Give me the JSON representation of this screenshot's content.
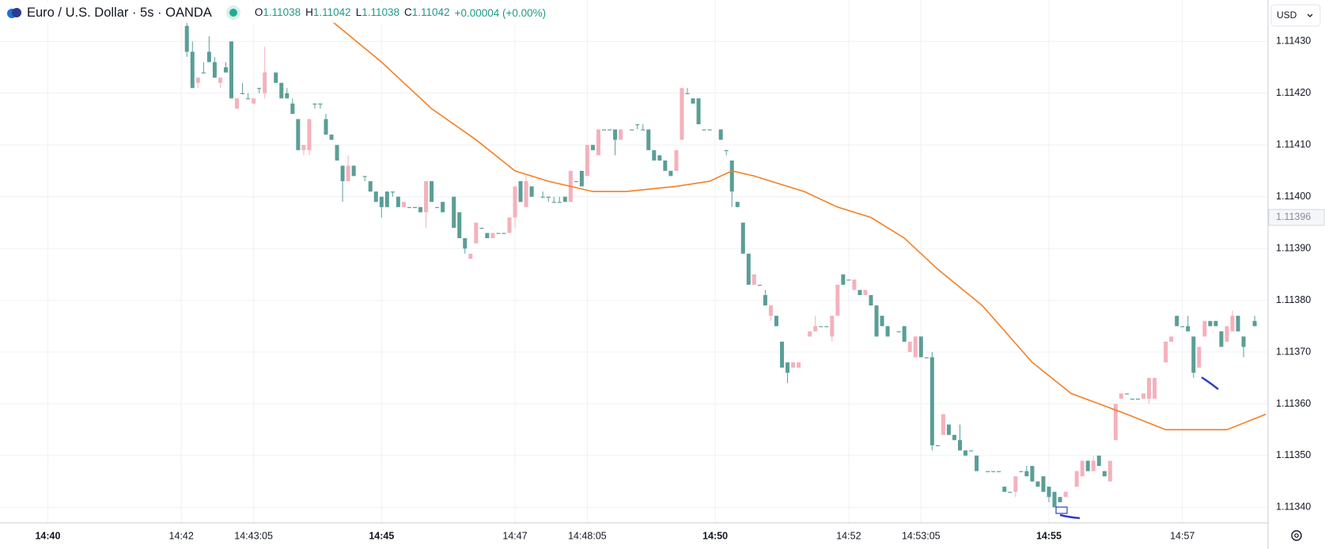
{
  "header": {
    "symbol": "Euro / U.S. Dollar · 5s · OANDA",
    "ohlc": [
      {
        "label": "O",
        "value": "1.11038"
      },
      {
        "label": "H",
        "value": "1.11042"
      },
      {
        "label": "L",
        "value": "1.11038"
      },
      {
        "label": "C",
        "value": "1.11042"
      }
    ],
    "change": "+0.00004 (+0.00%)"
  },
  "currency": "USD",
  "chart_data": {
    "type": "candlestick",
    "grid": true,
    "up_color": "#f4b1bc",
    "down_color": "#5a9e97",
    "xlim": [
      "14:39:17",
      "14:58:17"
    ],
    "xticks": [
      "14:40",
      "14:42",
      "14:43:05",
      "14:45",
      "14:47",
      "14:48:05",
      "14:50",
      "14:52",
      "14:53:05",
      "14:55",
      "14:57"
    ],
    "ylim": [
      1.11337,
      1.11438
    ],
    "yticks": [
      {
        "value": 1.1134,
        "label": "1.11340"
      },
      {
        "value": 1.1135,
        "label": "1.11350"
      },
      {
        "value": 1.1136,
        "label": "1.11360"
      },
      {
        "value": 1.1137,
        "label": "1.11370"
      },
      {
        "value": 1.1138,
        "label": "1.11380"
      },
      {
        "value": 1.1139,
        "label": "1.11390"
      },
      {
        "value": 1.114,
        "label": "1.11400"
      },
      {
        "value": 1.1141,
        "label": "1.11410"
      },
      {
        "value": 1.1142,
        "label": "1.11420"
      },
      {
        "value": 1.1143,
        "label": "1.11430"
      }
    ],
    "last_price": 1.11396,
    "x": [
      "14:42:05",
      "14:42:10",
      "14:42:15",
      "14:42:20",
      "14:42:25",
      "14:42:30",
      "14:42:35",
      "14:42:40",
      "14:42:45",
      "14:42:50",
      "14:42:55",
      "14:43:00",
      "14:43:05",
      "14:43:10",
      "14:43:15",
      "14:43:25",
      "14:43:30",
      "14:43:35",
      "14:43:40",
      "14:43:45",
      "14:43:50",
      "14:43:55",
      "14:44:00",
      "14:44:05",
      "14:44:10",
      "14:44:15",
      "14:44:20",
      "14:44:25",
      "14:44:30",
      "14:44:35",
      "14:44:45",
      "14:44:50",
      "14:44:55",
      "14:45:00",
      "14:45:05",
      "14:45:10",
      "14:45:15",
      "14:45:20",
      "14:45:25",
      "14:45:30",
      "14:45:35",
      "14:45:40",
      "14:45:45",
      "14:45:50",
      "14:45:55",
      "14:46:05",
      "14:46:10",
      "14:46:15",
      "14:46:20",
      "14:46:25",
      "14:46:30",
      "14:46:35",
      "14:46:40",
      "14:46:45",
      "14:46:50",
      "14:46:55",
      "14:47:00",
      "14:47:05",
      "14:47:10",
      "14:47:15",
      "14:47:25",
      "14:47:30",
      "14:47:35",
      "14:47:40",
      "14:47:45",
      "14:47:50",
      "14:47:55",
      "14:48:00",
      "14:48:05",
      "14:48:10",
      "14:48:15",
      "14:48:20",
      "14:48:25",
      "14:48:30",
      "14:48:35",
      "14:48:45",
      "14:48:50",
      "14:48:55",
      "14:49:00",
      "14:49:05",
      "14:49:10",
      "14:49:15",
      "14:49:20",
      "14:49:25",
      "14:49:30",
      "14:49:35",
      "14:49:40",
      "14:49:45",
      "14:49:50",
      "14:49:55",
      "14:50:05",
      "14:50:10",
      "14:50:15",
      "14:50:20",
      "14:50:25",
      "14:50:30",
      "14:50:35",
      "14:50:40",
      "14:50:45",
      "14:50:50",
      "14:50:55",
      "14:51:00",
      "14:51:05",
      "14:51:10",
      "14:51:15",
      "14:51:25",
      "14:51:30",
      "14:51:35",
      "14:51:40",
      "14:51:45",
      "14:51:50",
      "14:51:55",
      "14:52:00",
      "14:52:05",
      "14:52:10",
      "14:52:15",
      "14:52:20",
      "14:52:25",
      "14:52:30",
      "14:52:35",
      "14:52:45",
      "14:52:50",
      "14:52:55",
      "14:53:00",
      "14:53:05",
      "14:53:10",
      "14:53:15",
      "14:53:20",
      "14:53:25",
      "14:53:30",
      "14:53:35",
      "14:53:40",
      "14:53:45",
      "14:53:50",
      "14:53:55",
      "14:54:05",
      "14:54:10",
      "14:54:15",
      "14:54:20",
      "14:54:25",
      "14:54:30",
      "14:54:35",
      "14:54:40",
      "14:54:45",
      "14:54:50",
      "14:54:55",
      "14:55:00",
      "14:55:05",
      "14:55:10",
      "14:55:15",
      "14:55:25",
      "14:55:30",
      "14:55:35",
      "14:55:40",
      "14:55:45",
      "14:55:50",
      "14:55:55",
      "14:56:00",
      "14:56:05",
      "14:56:10",
      "14:56:15",
      "14:56:20",
      "14:56:25",
      "14:56:30",
      "14:56:35",
      "14:56:45",
      "14:56:50",
      "14:56:55",
      "14:57:00",
      "14:57:05",
      "14:57:10",
      "14:57:15",
      "14:57:20",
      "14:57:25",
      "14:57:30",
      "14:57:35",
      "14:57:40",
      "14:57:45",
      "14:57:50",
      "14:57:55",
      "14:58:05"
    ],
    "open": [
      1.11433,
      1.11428,
      1.11422,
      1.11424,
      1.11428,
      1.11426,
      1.11422,
      1.11425,
      1.1143,
      1.11417,
      1.1142,
      1.11419,
      1.11418,
      1.11421,
      1.1142,
      1.11424,
      1.11422,
      1.1142,
      1.11418,
      1.11415,
      1.11409,
      1.11409,
      1.11418,
      1.11418,
      1.11415,
      1.11412,
      1.1141,
      1.11406,
      1.11403,
      1.11406,
      1.11404,
      1.11403,
      1.11401,
      1.114,
      1.11401,
      1.11401,
      1.114,
      1.11398,
      1.11398,
      1.11398,
      1.11398,
      1.11397,
      1.11403,
      1.11398,
      1.11399,
      1.114,
      1.11397,
      1.11392,
      1.11388,
      1.11391,
      1.11394,
      1.11393,
      1.11392,
      1.11393,
      1.11393,
      1.11393,
      1.11396,
      1.11403,
      1.11398,
      1.11402,
      1.114,
      1.114,
      1.11399,
      1.11399,
      1.114,
      1.11399,
      1.11403,
      1.11405,
      1.11404,
      1.1141,
      1.11408,
      1.11413,
      1.11413,
      1.11413,
      1.11411,
      1.11413,
      1.11414,
      1.11413,
      1.11413,
      1.11409,
      1.11408,
      1.11407,
      1.11405,
      1.11405,
      1.11411,
      1.1142,
      1.11419,
      1.11419,
      1.11413,
      1.11413,
      1.11413,
      1.11409,
      1.11407,
      1.11399,
      1.11395,
      1.11389,
      1.11383,
      1.11383,
      1.11381,
      1.11377,
      1.11377,
      1.11372,
      1.11368,
      1.11367,
      1.11367,
      1.11373,
      1.11374,
      1.11375,
      1.11375,
      1.11373,
      1.11377,
      1.11385,
      1.11384,
      1.11382,
      1.11382,
      1.11381,
      1.11381,
      1.11379,
      1.11377,
      1.11375,
      1.11374,
      1.11375,
      1.1137,
      1.11369,
      1.11373,
      1.11369,
      1.11369,
      1.11352,
      1.11354,
      1.11356,
      1.11354,
      1.11353,
      1.11351,
      1.11351,
      1.1135,
      1.11347,
      1.11347,
      1.11347,
      1.11344,
      1.11343,
      1.11343,
      1.11347,
      1.11347,
      1.11348,
      1.11345,
      1.11346,
      1.11344,
      1.11343,
      1.11342,
      1.11342,
      1.11344,
      1.11346,
      1.11349,
      1.11347,
      1.1135,
      1.11347,
      1.11345,
      1.11353,
      1.11361,
      1.11362,
      1.11361,
      1.11361,
      1.11361,
      1.11361,
      1.11361,
      1.11368,
      1.11372,
      1.11377,
      1.11375,
      1.11375,
      1.11373,
      1.11367,
      1.11373,
      1.11376,
      1.11376,
      1.11374,
      1.11372,
      1.11374,
      1.11377,
      1.11373,
      1.11376
    ],
    "high": [
      1.11434,
      1.1143,
      1.11423,
      1.11426,
      1.11431,
      1.11427,
      1.11423,
      1.11426,
      1.1143,
      1.11419,
      1.11422,
      1.1142,
      1.11419,
      1.11421,
      1.11429,
      1.11424,
      1.11422,
      1.11421,
      1.11419,
      1.11415,
      1.1141,
      1.11415,
      1.11418,
      1.11418,
      1.11416,
      1.11412,
      1.1141,
      1.11406,
      1.11408,
      1.11406,
      1.11404,
      1.11403,
      1.11401,
      1.114,
      1.11401,
      1.11401,
      1.114,
      1.11399,
      1.11398,
      1.11398,
      1.11398,
      1.11403,
      1.11403,
      1.11398,
      1.11399,
      1.114,
      1.11397,
      1.11392,
      1.11389,
      1.11395,
      1.11394,
      1.11393,
      1.11393,
      1.11393,
      1.11393,
      1.11396,
      1.11402,
      1.11403,
      1.11404,
      1.11402,
      1.11401,
      1.114,
      1.114,
      1.114,
      1.114,
      1.11405,
      1.11403,
      1.11405,
      1.1141,
      1.1141,
      1.11413,
      1.11413,
      1.11413,
      1.11413,
      1.11413,
      1.11413,
      1.11414,
      1.11414,
      1.11413,
      1.11409,
      1.11408,
      1.11407,
      1.11405,
      1.11409,
      1.11421,
      1.11421,
      1.11419,
      1.11419,
      1.11413,
      1.11413,
      1.11413,
      1.11409,
      1.11407,
      1.11399,
      1.11395,
      1.11389,
      1.11385,
      1.11383,
      1.11382,
      1.11379,
      1.11377,
      1.11372,
      1.11368,
      1.11368,
      1.11368,
      1.11374,
      1.11377,
      1.11375,
      1.11375,
      1.11377,
      1.11383,
      1.11385,
      1.11384,
      1.11384,
      1.11382,
      1.11382,
      1.11381,
      1.11379,
      1.11377,
      1.11375,
      1.11374,
      1.11375,
      1.11372,
      1.11373,
      1.11373,
      1.11369,
      1.1137,
      1.11352,
      1.11358,
      1.11356,
      1.11354,
      1.11356,
      1.11351,
      1.11351,
      1.1135,
      1.11347,
      1.11347,
      1.11347,
      1.11344,
      1.11343,
      1.11346,
      1.11347,
      1.11348,
      1.11348,
      1.11345,
      1.11346,
      1.11344,
      1.11343,
      1.11342,
      1.11343,
      1.11347,
      1.11349,
      1.11349,
      1.1135,
      1.1135,
      1.11347,
      1.11349,
      1.1136,
      1.11362,
      1.11362,
      1.11361,
      1.11361,
      1.11362,
      1.11365,
      1.11365,
      1.11372,
      1.11373,
      1.11377,
      1.11375,
      1.11377,
      1.11373,
      1.11371,
      1.11376,
      1.11376,
      1.11376,
      1.11374,
      1.11375,
      1.11378,
      1.11377,
      1.11373,
      1.11377
    ],
    "low": [
      1.11427,
      1.11421,
      1.11421,
      1.11424,
      1.11426,
      1.11423,
      1.11421,
      1.11424,
      1.11419,
      1.11417,
      1.1142,
      1.11419,
      1.11418,
      1.1142,
      1.11419,
      1.11422,
      1.11419,
      1.11419,
      1.11416,
      1.11409,
      1.11408,
      1.11408,
      1.11417,
      1.11417,
      1.11412,
      1.11411,
      1.11407,
      1.11399,
      1.11403,
      1.11404,
      1.11403,
      1.11401,
      1.11399,
      1.11396,
      1.11398,
      1.114,
      1.11398,
      1.11398,
      1.11398,
      1.11398,
      1.11397,
      1.11394,
      1.11399,
      1.11398,
      1.11397,
      1.11394,
      1.11392,
      1.11389,
      1.11388,
      1.11391,
      1.11394,
      1.11392,
      1.11392,
      1.11393,
      1.11393,
      1.11393,
      1.11394,
      1.11399,
      1.11398,
      1.114,
      1.114,
      1.11399,
      1.11399,
      1.11399,
      1.11399,
      1.11399,
      1.11403,
      1.11402,
      1.11404,
      1.11409,
      1.11408,
      1.11413,
      1.11413,
      1.11408,
      1.11411,
      1.11413,
      1.11413,
      1.11413,
      1.11409,
      1.11407,
      1.11407,
      1.11405,
      1.11404,
      1.11405,
      1.11411,
      1.1142,
      1.11418,
      1.11414,
      1.11413,
      1.11413,
      1.11411,
      1.11408,
      1.11398,
      1.11398,
      1.11389,
      1.11383,
      1.11383,
      1.11383,
      1.11379,
      1.11376,
      1.11375,
      1.11367,
      1.11364,
      1.11367,
      1.11367,
      1.11373,
      1.11374,
      1.11375,
      1.11375,
      1.11372,
      1.11377,
      1.11383,
      1.11384,
      1.11382,
      1.11381,
      1.11381,
      1.11379,
      1.11373,
      1.11375,
      1.11373,
      1.11374,
      1.11372,
      1.1137,
      1.11369,
      1.11369,
      1.11369,
      1.11351,
      1.11352,
      1.11354,
      1.11354,
      1.11353,
      1.11351,
      1.1135,
      1.11351,
      1.11347,
      1.11347,
      1.11347,
      1.11347,
      1.11343,
      1.11343,
      1.11342,
      1.11347,
      1.11346,
      1.11345,
      1.11344,
      1.11343,
      1.11341,
      1.1134,
      1.11341,
      1.11342,
      1.11344,
      1.11346,
      1.11347,
      1.11347,
      1.11348,
      1.11346,
      1.11345,
      1.11353,
      1.11361,
      1.11362,
      1.11361,
      1.11361,
      1.11361,
      1.1136,
      1.11361,
      1.11368,
      1.11372,
      1.11375,
      1.11375,
      1.11374,
      1.11365,
      1.11367,
      1.11373,
      1.11375,
      1.11375,
      1.11371,
      1.11372,
      1.11374,
      1.11374,
      1.11369,
      1.11375
    ],
    "close": [
      1.11428,
      1.11421,
      1.11423,
      1.11424,
      1.11426,
      1.11423,
      1.11423,
      1.11424,
      1.11419,
      1.11419,
      1.1142,
      1.11419,
      1.11419,
      1.11421,
      1.11424,
      1.11422,
      1.11419,
      1.11419,
      1.11416,
      1.11409,
      1.1141,
      1.11415,
      1.11418,
      1.11418,
      1.11412,
      1.11411,
      1.11407,
      1.11403,
      1.11406,
      1.11404,
      1.11404,
      1.11401,
      1.11399,
      1.11398,
      1.11398,
      1.11401,
      1.11398,
      1.11399,
      1.11398,
      1.11398,
      1.11397,
      1.11403,
      1.11399,
      1.11398,
      1.11397,
      1.11394,
      1.11392,
      1.1139,
      1.11389,
      1.11395,
      1.11394,
      1.11392,
      1.11393,
      1.11393,
      1.11393,
      1.11396,
      1.11402,
      1.11399,
      1.11403,
      1.114,
      1.114,
      1.114,
      1.11399,
      1.11399,
      1.11399,
      1.11405,
      1.11403,
      1.11402,
      1.1141,
      1.11409,
      1.11413,
      1.11413,
      1.11413,
      1.11411,
      1.11413,
      1.11413,
      1.11414,
      1.11413,
      1.11409,
      1.11407,
      1.11407,
      1.11405,
      1.11404,
      1.11409,
      1.11421,
      1.1142,
      1.11418,
      1.11414,
      1.11413,
      1.11413,
      1.11411,
      1.11409,
      1.11401,
      1.11398,
      1.11389,
      1.11383,
      1.11385,
      1.11383,
      1.11379,
      1.11379,
      1.11375,
      1.11367,
      1.11366,
      1.11368,
      1.11368,
      1.11374,
      1.11375,
      1.11375,
      1.11375,
      1.11377,
      1.11383,
      1.11383,
      1.11384,
      1.11384,
      1.11381,
      1.11382,
      1.11379,
      1.11373,
      1.11375,
      1.11373,
      1.11374,
      1.11372,
      1.11372,
      1.11373,
      1.11369,
      1.11369,
      1.11352,
      1.11352,
      1.11358,
      1.11354,
      1.11353,
      1.11351,
      1.1135,
      1.11351,
      1.11347,
      1.11347,
      1.11347,
      1.11347,
      1.11343,
      1.11343,
      1.11346,
      1.11347,
      1.11346,
      1.11345,
      1.11344,
      1.11343,
      1.11342,
      1.1134,
      1.11341,
      1.11343,
      1.11347,
      1.11349,
      1.11347,
      1.11349,
      1.11348,
      1.11346,
      1.11349,
      1.1136,
      1.11362,
      1.11362,
      1.11361,
      1.11361,
      1.11362,
      1.11365,
      1.11365,
      1.11372,
      1.11373,
      1.11375,
      1.11375,
      1.11374,
      1.11366,
      1.11371,
      1.11376,
      1.11375,
      1.11375,
      1.11371,
      1.11375,
      1.11377,
      1.11374,
      1.11371,
      1.11375
    ],
    "ma": {
      "color": "#f57f22",
      "x": [
        "14:44:15",
        "14:45:00",
        "14:45:45",
        "14:46:25",
        "14:47:00",
        "14:47:30",
        "14:48:10",
        "14:48:40",
        "14:49:25",
        "14:49:55",
        "14:50:15",
        "14:50:35",
        "14:50:50",
        "14:51:20",
        "14:51:50",
        "14:52:20",
        "14:52:50",
        "14:53:20",
        "14:54:00",
        "14:54:45",
        "14:55:20",
        "14:56:10",
        "14:56:45",
        "14:57:15",
        "14:57:40",
        "14:58:15"
      ],
      "values": [
        1.11434,
        1.11426,
        1.11417,
        1.11411,
        1.11405,
        1.11403,
        1.11401,
        1.11401,
        1.11402,
        1.11403,
        1.11405,
        1.11404,
        1.11403,
        1.11401,
        1.11398,
        1.11396,
        1.11392,
        1.11386,
        1.11379,
        1.11368,
        1.11362,
        1.11358,
        1.11355,
        1.11355,
        1.11355,
        1.11358
      ]
    }
  }
}
